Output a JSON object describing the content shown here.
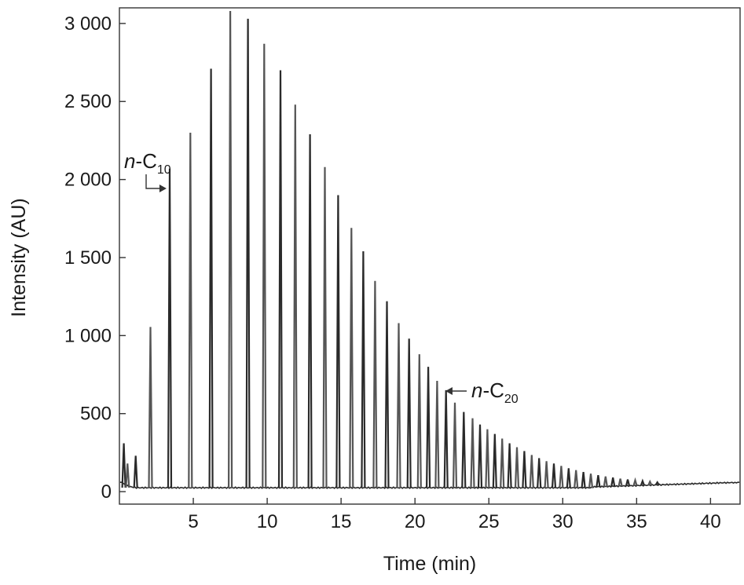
{
  "chart_data": {
    "type": "line",
    "title": "",
    "xlabel": "Time (min)",
    "ylabel": "Intensity (AU)",
    "xlim": [
      0,
      42
    ],
    "ylim": [
      -80,
      3100
    ],
    "xticks": [
      5,
      10,
      15,
      20,
      25,
      30,
      35,
      40
    ],
    "xtick_labels": [
      "5",
      "10",
      "15",
      "20",
      "25",
      "30",
      "35",
      "40"
    ],
    "yticks": [
      0,
      500,
      1000,
      1500,
      2000,
      2500,
      3000
    ],
    "ytick_labels": [
      "0",
      "500",
      "1 000",
      "1 500",
      "2 000",
      "2 500",
      "3 000"
    ],
    "grid": false,
    "line_color": "#2a2a2a",
    "annotations": [
      {
        "prefix": "n",
        "text": "-C",
        "sub": "10",
        "x": 3.4,
        "y": 2070
      },
      {
        "prefix": "n",
        "text": "-C",
        "sub": "20",
        "x": 21.9,
        "y": 670
      }
    ],
    "series": [
      {
        "peaks": [
          {
            "x": 0.3,
            "y": 310
          },
          {
            "x": 0.55,
            "y": 180
          },
          {
            "x": 1.1,
            "y": 230
          },
          {
            "x": 2.1,
            "y": 1055
          },
          {
            "x": 3.4,
            "y": 2070
          },
          {
            "x": 4.8,
            "y": 2300
          },
          {
            "x": 6.2,
            "y": 2710
          },
          {
            "x": 7.5,
            "y": 3080
          },
          {
            "x": 8.7,
            "y": 3030
          },
          {
            "x": 9.8,
            "y": 2870
          },
          {
            "x": 10.9,
            "y": 2700
          },
          {
            "x": 11.9,
            "y": 2480
          },
          {
            "x": 12.9,
            "y": 2290
          },
          {
            "x": 13.9,
            "y": 2080
          },
          {
            "x": 14.8,
            "y": 1900
          },
          {
            "x": 15.7,
            "y": 1690
          },
          {
            "x": 16.5,
            "y": 1540
          },
          {
            "x": 17.3,
            "y": 1350
          },
          {
            "x": 18.1,
            "y": 1220
          },
          {
            "x": 18.9,
            "y": 1080
          },
          {
            "x": 19.6,
            "y": 980
          },
          {
            "x": 20.3,
            "y": 880
          },
          {
            "x": 20.9,
            "y": 800
          },
          {
            "x": 21.5,
            "y": 710
          },
          {
            "x": 22.1,
            "y": 650
          },
          {
            "x": 22.7,
            "y": 570
          },
          {
            "x": 23.3,
            "y": 510
          },
          {
            "x": 23.9,
            "y": 470
          },
          {
            "x": 24.4,
            "y": 430
          },
          {
            "x": 24.9,
            "y": 400
          },
          {
            "x": 25.4,
            "y": 370
          },
          {
            "x": 25.9,
            "y": 340
          },
          {
            "x": 26.4,
            "y": 310
          },
          {
            "x": 26.9,
            "y": 285
          },
          {
            "x": 27.4,
            "y": 260
          },
          {
            "x": 27.9,
            "y": 235
          },
          {
            "x": 28.4,
            "y": 215
          },
          {
            "x": 28.9,
            "y": 195
          },
          {
            "x": 29.4,
            "y": 180
          },
          {
            "x": 29.9,
            "y": 165
          },
          {
            "x": 30.4,
            "y": 150
          },
          {
            "x": 30.9,
            "y": 138
          },
          {
            "x": 31.4,
            "y": 126
          },
          {
            "x": 31.9,
            "y": 115
          },
          {
            "x": 32.4,
            "y": 105
          },
          {
            "x": 32.9,
            "y": 97
          },
          {
            "x": 33.4,
            "y": 90
          },
          {
            "x": 33.9,
            "y": 83
          },
          {
            "x": 34.4,
            "y": 78
          },
          {
            "x": 34.9,
            "y": 73
          },
          {
            "x": 35.4,
            "y": 68
          },
          {
            "x": 35.9,
            "y": 64
          },
          {
            "x": 36.4,
            "y": 60
          }
        ]
      }
    ]
  }
}
